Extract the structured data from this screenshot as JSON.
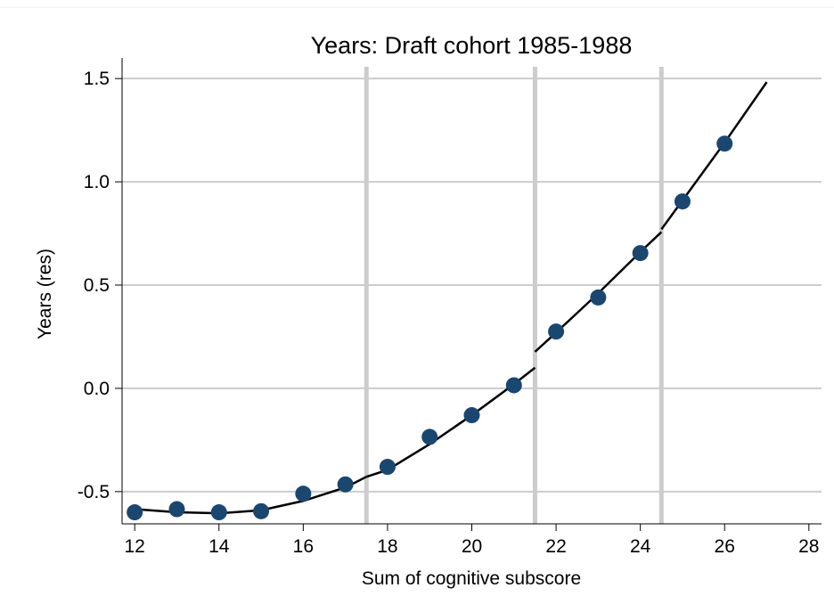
{
  "chart_data": {
    "type": "scatter",
    "title": "Years: Draft cohort 1985-1988",
    "xlabel": "Sum of cognitive subscore",
    "ylabel": "Years (res)",
    "x": [
      12,
      13,
      14,
      15,
      16,
      17,
      18,
      19,
      20,
      21,
      22,
      23,
      24,
      25,
      26
    ],
    "values": [
      -0.6,
      -0.585,
      -0.6,
      -0.595,
      -0.51,
      -0.465,
      -0.38,
      -0.235,
      -0.13,
      0.015,
      0.275,
      0.44,
      0.655,
      0.905,
      1.185
    ],
    "color": "#1a476f",
    "fit": {
      "x": [
        12,
        13,
        14,
        15,
        16,
        17,
        17.5,
        18,
        19,
        20,
        21,
        21.5,
        null,
        21.5,
        22,
        23,
        24,
        24.5,
        null,
        24.5,
        25,
        26,
        27
      ],
      "values": [
        -0.585,
        -0.6,
        -0.605,
        -0.59,
        -0.545,
        -0.48,
        -0.428,
        -0.395,
        -0.27,
        -0.13,
        0.02,
        0.1,
        null,
        0.177,
        0.27,
        0.46,
        0.66,
        0.757,
        null,
        0.77,
        0.91,
        1.19,
        1.483
      ],
      "color": "#000000"
    },
    "vlines": [
      17.5,
      21.5,
      24.5
    ],
    "vline_color": "#cccccc",
    "xlim": [
      11.7,
      28.3
    ],
    "xticks": [
      12,
      14,
      16,
      18,
      20,
      22,
      24,
      26,
      28
    ],
    "ylim": [
      -0.656,
      1.6
    ],
    "yticks": [
      -0.5,
      {
        "value": 0,
        "label": "0.0"
      },
      0.5,
      {
        "value": 1,
        "label": "1.0"
      },
      1.5
    ],
    "grid": true
  }
}
